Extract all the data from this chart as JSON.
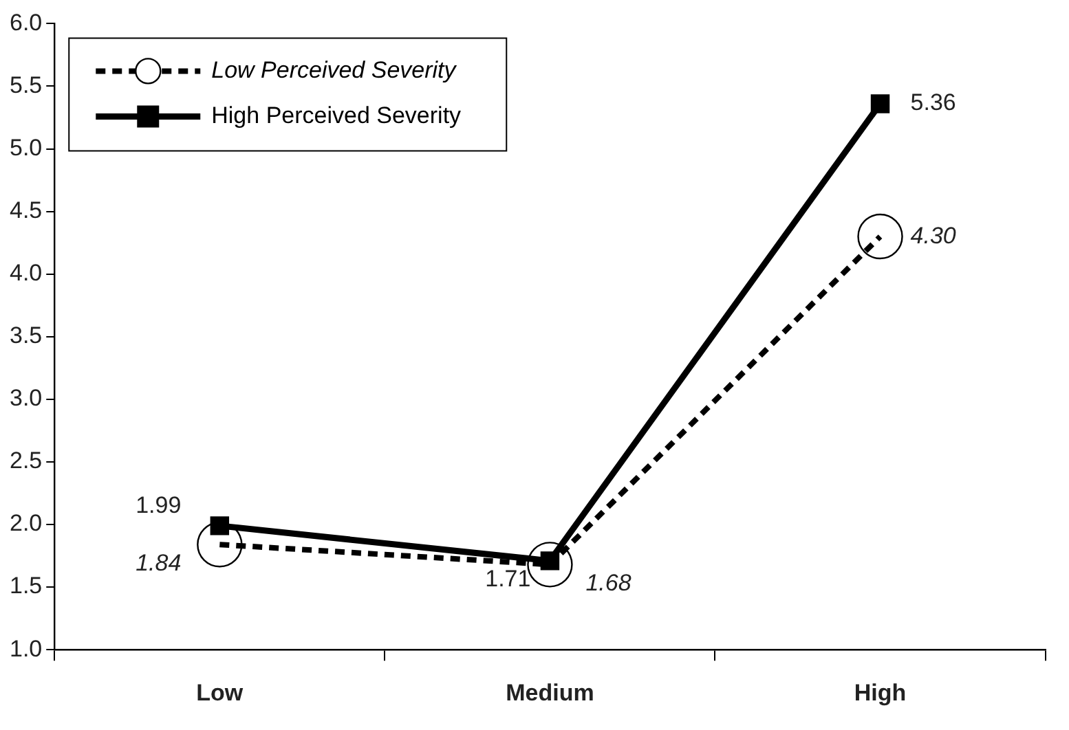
{
  "chart_data": {
    "type": "line",
    "categories": [
      "Low",
      "Medium",
      "High"
    ],
    "series": [
      {
        "name": "Low Perceived Severity",
        "color": "#000000",
        "values": [
          1.84,
          1.68,
          4.3
        ],
        "marker": "circle",
        "line_style": "dashed",
        "value_labels": [
          "1.84",
          "1.68",
          "4.30"
        ]
      },
      {
        "name": "High Perceived Severity",
        "color": "#000000",
        "values": [
          1.99,
          1.71,
          5.36
        ],
        "marker": "square",
        "line_style": "solid",
        "value_labels": [
          "1.99",
          "1.71",
          "5.36"
        ]
      }
    ],
    "ylim": [
      1.0,
      6.0
    ],
    "yticks": [
      {
        "value": 1,
        "label": "1.0"
      },
      1.5,
      {
        "value": 2,
        "label": "2.0"
      },
      2.5,
      {
        "value": 3,
        "label": "3.0"
      },
      3.5,
      {
        "value": 4,
        "label": "4.0"
      },
      4.5,
      {
        "value": 5,
        "label": "5.0"
      },
      5.5,
      {
        "value": 6,
        "label": "6.0"
      }
    ],
    "grid": false,
    "legend": "top left"
  }
}
